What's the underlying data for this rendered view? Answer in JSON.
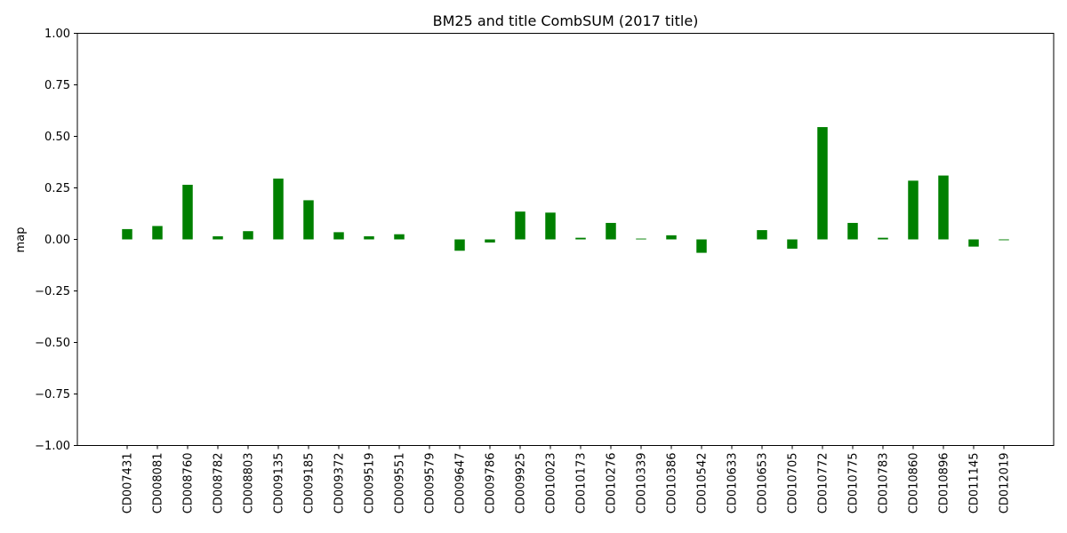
{
  "chart_data": {
    "type": "bar",
    "title": "BM25 and title CombSUM (2017 title)",
    "xlabel": "",
    "ylabel": "map",
    "ylim": [
      -1.0,
      1.0
    ],
    "yticks": [
      "−1.00",
      "−0.75",
      "−0.50",
      "−0.25",
      "0.00",
      "0.25",
      "0.50",
      "0.75",
      "1.00"
    ],
    "bar_color": "#008000",
    "grid": false,
    "categories": [
      "CD007431",
      "CD008081",
      "CD008760",
      "CD008782",
      "CD008803",
      "CD009135",
      "CD009185",
      "CD009372",
      "CD009519",
      "CD009551",
      "CD009579",
      "CD009647",
      "CD009786",
      "CD009925",
      "CD010023",
      "CD010173",
      "CD010276",
      "CD010339",
      "CD010386",
      "CD010542",
      "CD010633",
      "CD010653",
      "CD010705",
      "CD010772",
      "CD010775",
      "CD010783",
      "CD010860",
      "CD010896",
      "CD011145",
      "CD012019"
    ],
    "values": [
      0.05,
      0.065,
      0.265,
      0.015,
      0.04,
      0.295,
      0.19,
      0.035,
      0.015,
      0.025,
      0.0,
      -0.055,
      -0.015,
      0.135,
      0.13,
      0.008,
      0.08,
      0.004,
      0.02,
      -0.065,
      0.0,
      0.045,
      -0.045,
      0.545,
      0.08,
      0.008,
      0.285,
      0.31,
      -0.035,
      -0.004
    ]
  }
}
